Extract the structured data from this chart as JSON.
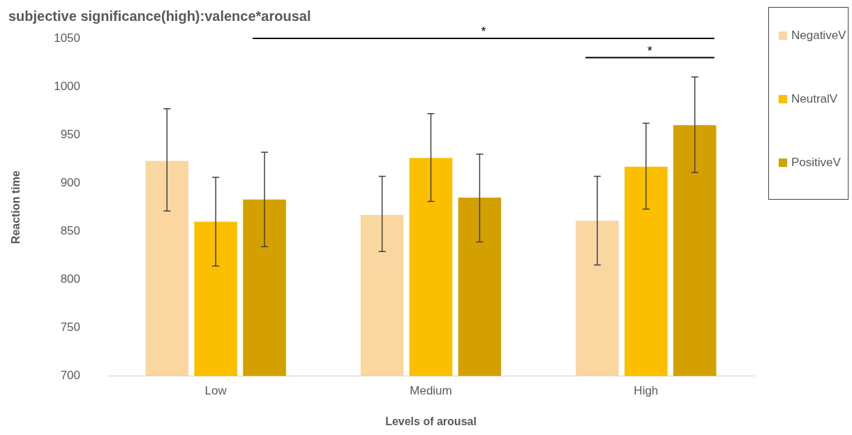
{
  "chart_data": {
    "type": "bar",
    "title": "subjective significance(high):valence*arousal",
    "xlabel": "Levels of arousal",
    "ylabel": "Reaction time",
    "categories": [
      "Low",
      "Medium",
      "High"
    ],
    "series": [
      {
        "name": "NegativeV",
        "color": "#fad7a0",
        "values": [
          923,
          867,
          861
        ],
        "errors": [
          [
            871,
            977
          ],
          [
            829,
            907
          ],
          [
            815,
            907
          ]
        ]
      },
      {
        "name": "NeutralV",
        "color": "#fbbf00",
        "values": [
          860,
          926,
          917
        ],
        "errors": [
          [
            814,
            906
          ],
          [
            881,
            972
          ],
          [
            873,
            962
          ]
        ]
      },
      {
        "name": "PositiveV",
        "color": "#d4a000",
        "values": [
          883,
          885,
          960
        ],
        "errors": [
          [
            834,
            932
          ],
          [
            839,
            930
          ],
          [
            911,
            1010
          ]
        ]
      }
    ],
    "ylim": [
      700,
      1050
    ],
    "yticks": [
      700,
      750,
      800,
      850,
      900,
      950,
      1000,
      1050
    ],
    "grid": false,
    "legend": "right",
    "annotations": [
      "*",
      "*"
    ]
  }
}
